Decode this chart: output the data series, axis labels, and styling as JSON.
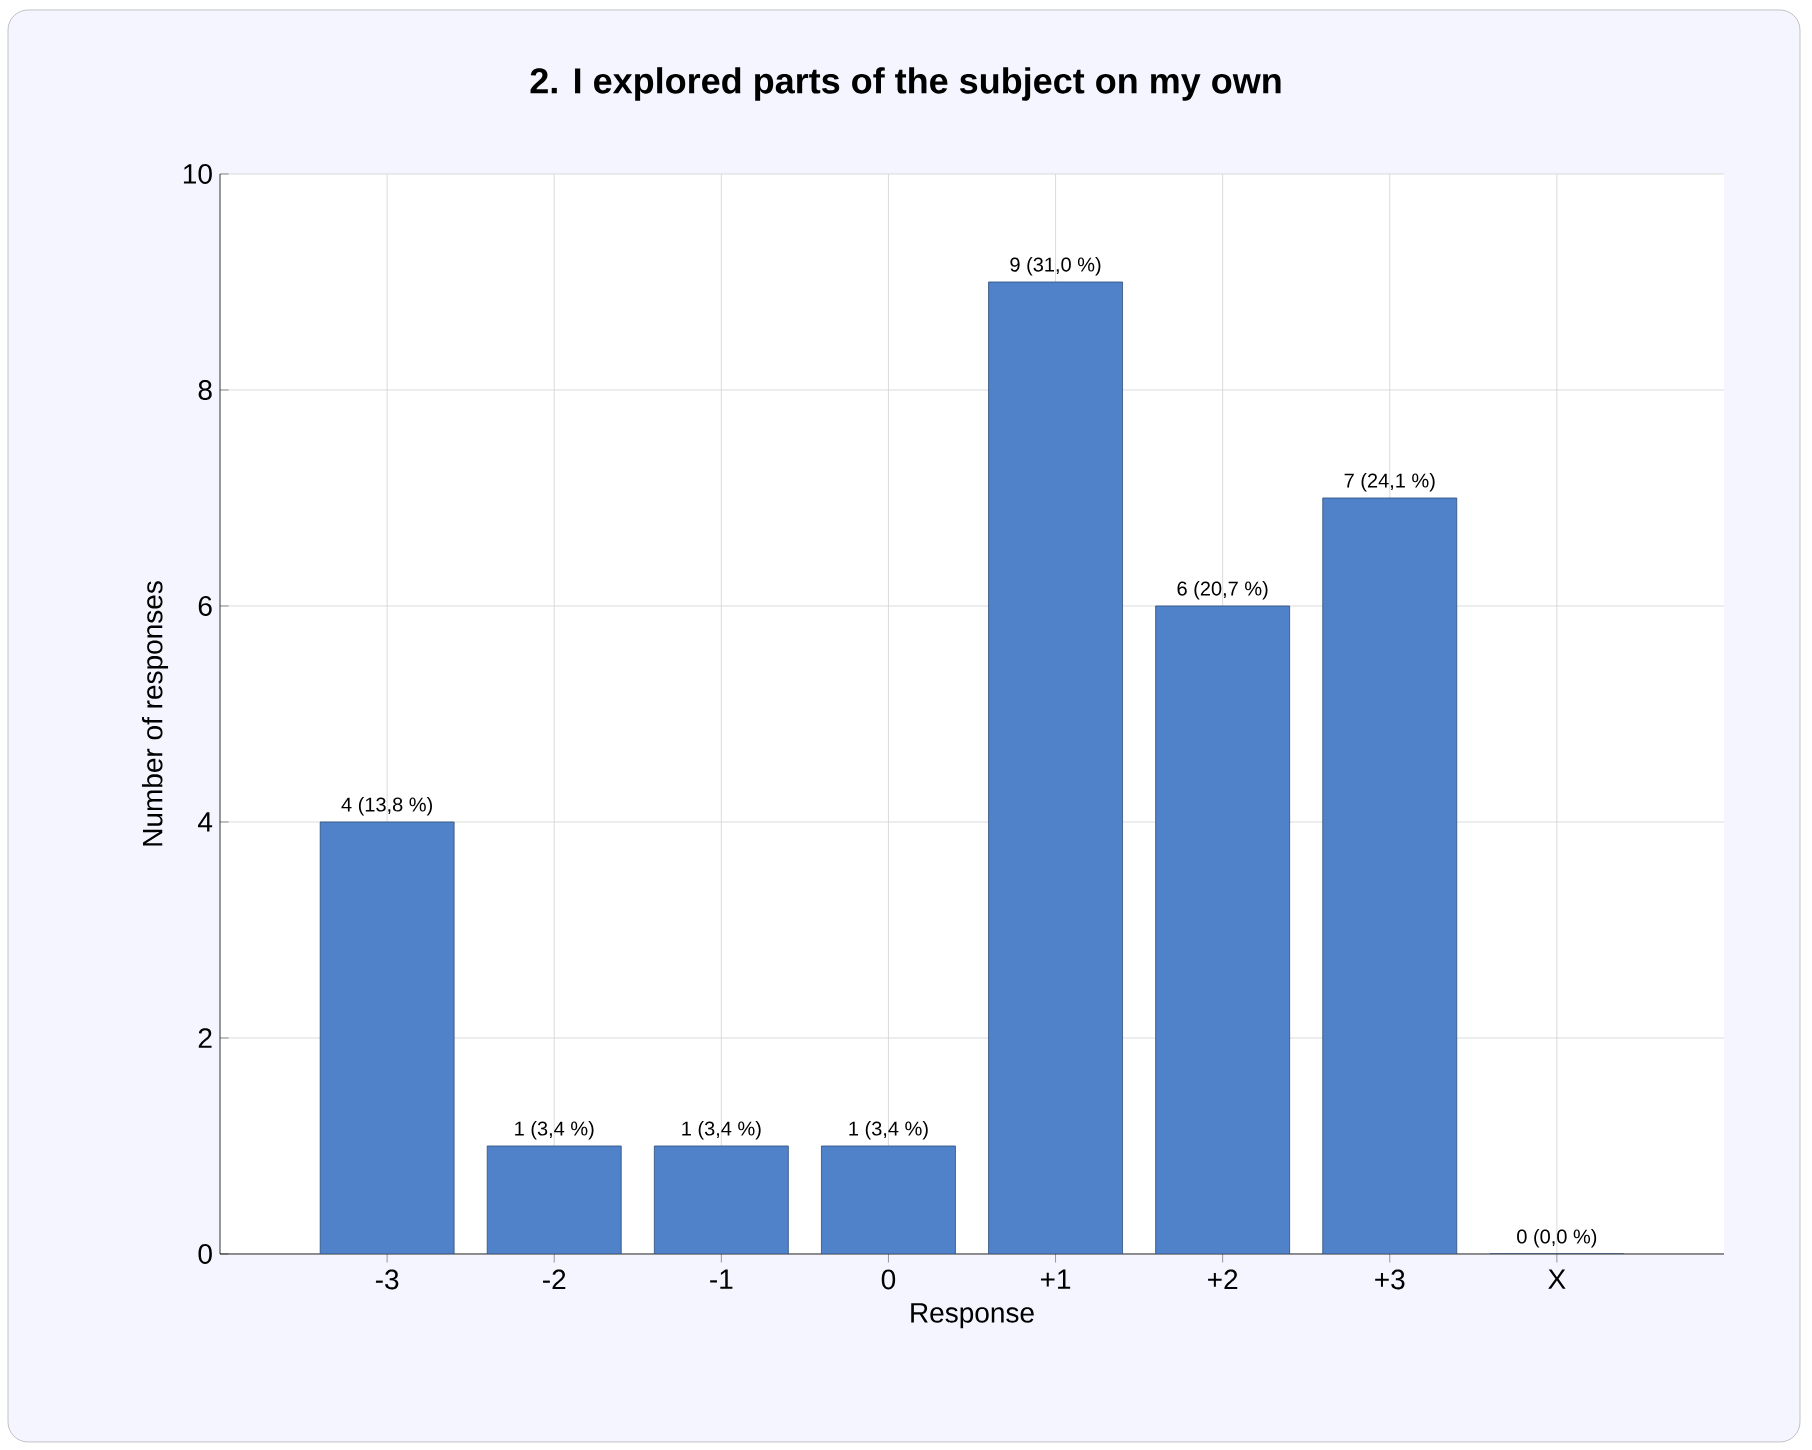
{
  "chart_data": {
    "type": "bar",
    "title": "2. I explored parts of the subject on my own",
    "xlabel": "Response",
    "ylabel": "Number of responses",
    "categories": [
      "-3",
      "-2",
      "-1",
      "0",
      "+1",
      "+2",
      "+3",
      "X"
    ],
    "values": [
      4,
      1,
      1,
      1,
      9,
      6,
      7,
      0
    ],
    "value_labels": [
      "4 (13,8 %)",
      "1 (3,4 %)",
      "1 (3,4 %)",
      "1 (3,4 %)",
      "9 (31,0 %)",
      "6 (20,7 %)",
      "7 (24,1 %)",
      "0 (0,0 %)"
    ],
    "color": "#4f82c8",
    "ylim": [
      0,
      10
    ],
    "yticks": [
      0,
      2,
      4,
      6,
      8,
      10
    ],
    "grid": true
  }
}
